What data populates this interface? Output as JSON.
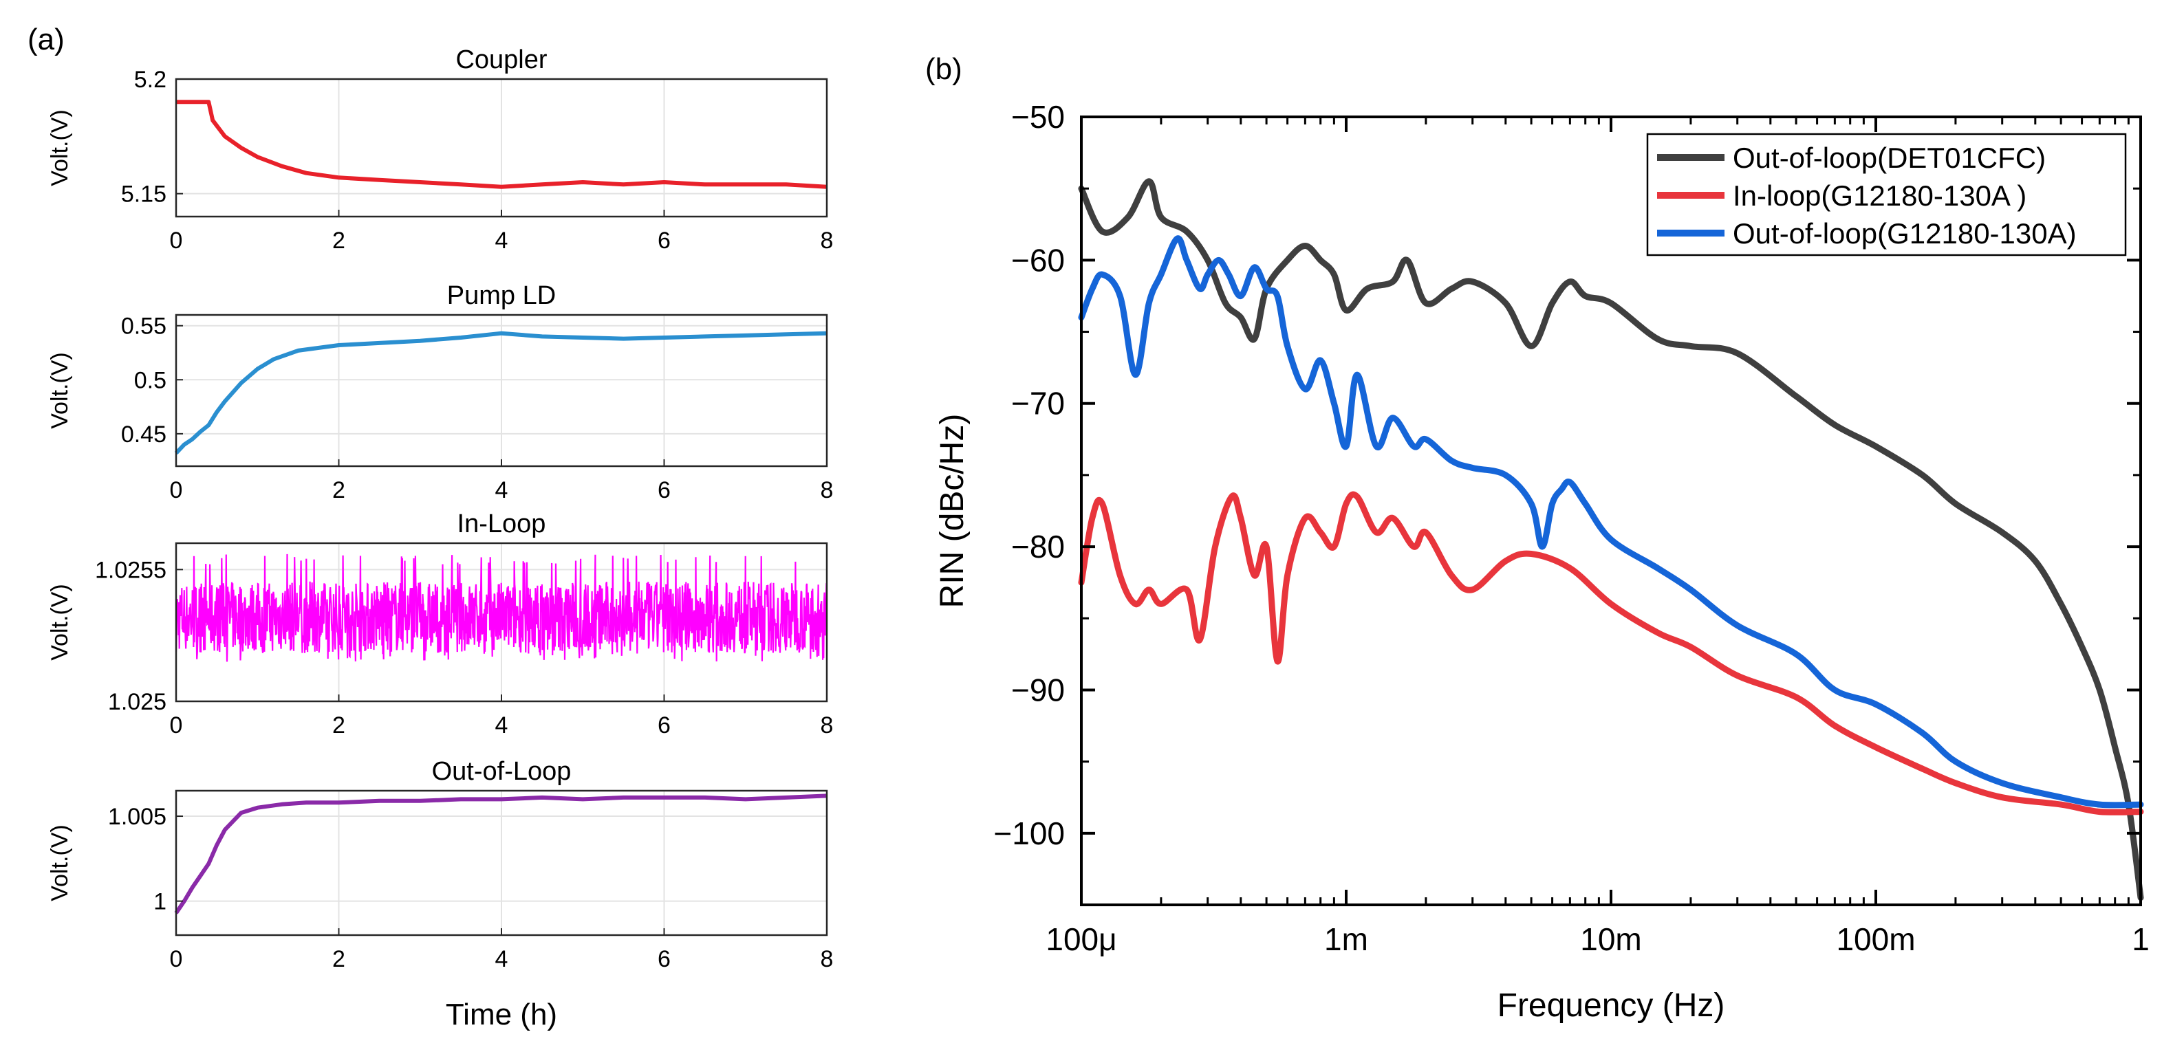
{
  "panel_a_label": "(a)",
  "panel_b_label": "(b)",
  "colors": {
    "coupler": "#e8212a",
    "pump": "#2a8fd0",
    "inloop": "#ff00ff",
    "outloop": "#8a2aa8",
    "det01": "#3f3f3f",
    "inloop_g": "#e8353c",
    "outloop_g": "#1565d8",
    "axis": "#000000",
    "grid": "#e3e3e3"
  },
  "chart_data": [
    {
      "type": "line",
      "title": "Coupler",
      "xlabel": "",
      "ylabel": "Volt.(V)",
      "xlim": [
        0,
        8
      ],
      "ylim": [
        5.14,
        5.2
      ],
      "x_ticks": [
        "0",
        "2",
        "4",
        "6",
        "8"
      ],
      "y_ticks": [
        {
          "value": 5.15,
          "label": "5.15"
        },
        {
          "value": 5.2,
          "label": "5.2"
        }
      ],
      "x": [
        0,
        0.2,
        0.4,
        0.45,
        0.6,
        0.8,
        1.0,
        1.3,
        1.6,
        2.0,
        2.5,
        3.0,
        3.5,
        4.0,
        4.5,
        5.0,
        5.5,
        6.0,
        6.5,
        7.0,
        7.5,
        8.0
      ],
      "values": [
        5.19,
        5.19,
        5.19,
        5.182,
        5.175,
        5.17,
        5.166,
        5.162,
        5.159,
        5.157,
        5.156,
        5.155,
        5.154,
        5.153,
        5.154,
        5.155,
        5.154,
        5.155,
        5.154,
        5.154,
        5.154,
        5.153
      ]
    },
    {
      "type": "line",
      "title": "Pump LD",
      "xlabel": "",
      "ylabel": "Volt.(V)",
      "xlim": [
        0,
        8
      ],
      "ylim": [
        0.42,
        0.56
      ],
      "x_ticks": [
        "0",
        "2",
        "4",
        "6",
        "8"
      ],
      "y_ticks": [
        {
          "value": 0.45,
          "label": "0.45"
        },
        {
          "value": 0.5,
          "label": "0.5"
        },
        {
          "value": 0.55,
          "label": "0.55"
        }
      ],
      "x": [
        0,
        0.1,
        0.2,
        0.3,
        0.4,
        0.5,
        0.6,
        0.8,
        1.0,
        1.2,
        1.5,
        2.0,
        2.5,
        3.0,
        3.5,
        4.0,
        4.5,
        5.0,
        5.5,
        6.0,
        6.5,
        7.0,
        7.5,
        8.0
      ],
      "values": [
        0.432,
        0.44,
        0.445,
        0.452,
        0.458,
        0.47,
        0.48,
        0.497,
        0.51,
        0.519,
        0.527,
        0.532,
        0.534,
        0.536,
        0.539,
        0.543,
        0.54,
        0.539,
        0.538,
        0.539,
        0.54,
        0.541,
        0.542,
        0.543
      ]
    },
    {
      "type": "line",
      "title": "In-Loop",
      "xlabel": "",
      "ylabel": "Volt.(V)",
      "xlim": [
        0,
        8
      ],
      "ylim": [
        1.025,
        1.0256
      ],
      "x_ticks": [
        "0",
        "2",
        "4",
        "6",
        "8"
      ],
      "y_ticks": [
        {
          "value": 1.025,
          "label": "1.025"
        },
        {
          "value": 1.0255,
          "label": "1.0255"
        }
      ],
      "x": [
        0,
        8
      ],
      "values": [
        1.02532,
        1.02532
      ],
      "noise_band": [
        1.02518,
        1.02554
      ]
    },
    {
      "type": "line",
      "title": "Out-of-Loop",
      "xlabel": "Time (h)",
      "ylabel": "Volt.(V)",
      "xlim": [
        0,
        8
      ],
      "ylim": [
        0.998,
        1.0065
      ],
      "x_ticks": [
        "0",
        "2",
        "4",
        "6",
        "8"
      ],
      "y_ticks": [
        {
          "value": 1.0,
          "label": "1"
        },
        {
          "value": 1.005,
          "label": "1.005"
        }
      ],
      "x": [
        0,
        0.1,
        0.2,
        0.3,
        0.4,
        0.5,
        0.6,
        0.8,
        1.0,
        1.3,
        1.6,
        2.0,
        2.5,
        3.0,
        3.5,
        4.0,
        4.5,
        5.0,
        5.5,
        6.0,
        6.5,
        7.0,
        7.5,
        8.0
      ],
      "values": [
        0.9993,
        1.0,
        1.0008,
        1.0015,
        1.0022,
        1.0033,
        1.0042,
        1.0052,
        1.0055,
        1.0057,
        1.0058,
        1.0058,
        1.0059,
        1.0059,
        1.006,
        1.006,
        1.0061,
        1.006,
        1.0061,
        1.0061,
        1.0061,
        1.006,
        1.0061,
        1.0062
      ]
    },
    {
      "type": "line",
      "title": "",
      "xlabel": "Frequency (Hz)",
      "ylabel": "RIN (dBc/Hz)",
      "x_scale": "log",
      "xlim": [
        0.0001,
        1
      ],
      "ylim": [
        -105,
        -50
      ],
      "x_ticks": [
        {
          "value": 0.0001,
          "label": "100μ"
        },
        {
          "value": 0.001,
          "label": "1m"
        },
        {
          "value": 0.01,
          "label": "10m"
        },
        {
          "value": 0.1,
          "label": "100m"
        },
        {
          "value": 1,
          "label": "1"
        }
      ],
      "y_ticks": [
        {
          "value": -50,
          "label": "−50"
        },
        {
          "value": -60,
          "label": "−60"
        },
        {
          "value": -70,
          "label": "−70"
        },
        {
          "value": -80,
          "label": "−80"
        },
        {
          "value": -90,
          "label": "−90"
        },
        {
          "value": -100,
          "label": "−100"
        }
      ],
      "legend_position": "top-right",
      "series": [
        {
          "name": "Out-of-loop(DET01CFC)",
          "color": "#3f3f3f",
          "x": [
            0.0001,
            0.00012,
            0.00015,
            0.00018,
            0.0002,
            0.00025,
            0.0003,
            0.00035,
            0.0004,
            0.00045,
            0.0005,
            0.0006,
            0.0007,
            0.0008,
            0.0009,
            0.001,
            0.0012,
            0.0015,
            0.0017,
            0.002,
            0.0025,
            0.003,
            0.004,
            0.005,
            0.006,
            0.007,
            0.008,
            0.01,
            0.015,
            0.02,
            0.03,
            0.05,
            0.07,
            0.1,
            0.15,
            0.2,
            0.3,
            0.4,
            0.5,
            0.6,
            0.7,
            0.8,
            0.9,
            1.0
          ],
          "values": [
            -55,
            -58,
            -57,
            -54.5,
            -57,
            -58,
            -60,
            -63,
            -64,
            -65.5,
            -62,
            -60,
            -59,
            -60,
            -61,
            -63.5,
            -62,
            -61.5,
            -60,
            -63,
            -62,
            -61.5,
            -63,
            -66,
            -63,
            -61.5,
            -62.5,
            -63,
            -65.5,
            -66,
            -66.5,
            -69.5,
            -71.5,
            -73,
            -75,
            -77,
            -79,
            -81,
            -84,
            -87,
            -90,
            -94,
            -98,
            -104.5
          ]
        },
        {
          "name": "In-loop(G12180-130A )",
          "color": "#e8353c",
          "x": [
            0.0001,
            0.00011,
            0.00012,
            0.00014,
            0.00016,
            0.00018,
            0.0002,
            0.00025,
            0.00028,
            0.00032,
            0.00037,
            0.0004,
            0.00045,
            0.0005,
            0.00055,
            0.0006,
            0.0007,
            0.0008,
            0.0009,
            0.001,
            0.0011,
            0.0013,
            0.0015,
            0.0018,
            0.002,
            0.0025,
            0.003,
            0.004,
            0.005,
            0.007,
            0.01,
            0.015,
            0.02,
            0.03,
            0.05,
            0.07,
            0.1,
            0.15,
            0.2,
            0.3,
            0.5,
            0.7,
            1.0
          ],
          "values": [
            -82.5,
            -78,
            -77,
            -82,
            -84,
            -83,
            -84,
            -83,
            -86.5,
            -80,
            -76.5,
            -78,
            -82,
            -80,
            -88,
            -82,
            -78,
            -79,
            -80,
            -77,
            -76.5,
            -79,
            -78,
            -80,
            -79,
            -82,
            -83,
            -81,
            -80.5,
            -81.5,
            -84,
            -86,
            -87,
            -89,
            -90.5,
            -92.5,
            -94,
            -95.5,
            -96.5,
            -97.5,
            -98,
            -98.5,
            -98.5
          ]
        },
        {
          "name": "Out-of-loop(G12180-130A)",
          "color": "#1565d8",
          "x": [
            0.0001,
            0.00011,
            0.00012,
            0.00014,
            0.00016,
            0.00018,
            0.0002,
            0.00023,
            0.00025,
            0.00028,
            0.0003,
            0.00033,
            0.00036,
            0.0004,
            0.00045,
            0.0005,
            0.00055,
            0.0006,
            0.0007,
            0.0008,
            0.0009,
            0.001,
            0.0011,
            0.0013,
            0.0015,
            0.0018,
            0.002,
            0.0025,
            0.003,
            0.004,
            0.005,
            0.0055,
            0.006,
            0.0065,
            0.007,
            0.008,
            0.01,
            0.015,
            0.02,
            0.03,
            0.05,
            0.07,
            0.1,
            0.15,
            0.2,
            0.3,
            0.5,
            0.7,
            1.0
          ],
          "values": [
            -64,
            -62,
            -61,
            -62.5,
            -68,
            -63,
            -61,
            -58.5,
            -60,
            -62,
            -61,
            -60,
            -61,
            -62.5,
            -60.5,
            -62,
            -62.5,
            -66,
            -69,
            -67,
            -70,
            -73,
            -68,
            -73,
            -71,
            -73,
            -72.5,
            -74,
            -74.5,
            -75,
            -77,
            -80,
            -77,
            -76,
            -75.5,
            -77,
            -79.5,
            -81.5,
            -83,
            -85.5,
            -87.5,
            -90,
            -91,
            -93,
            -95,
            -96.5,
            -97.5,
            -98,
            -98
          ]
        }
      ]
    }
  ]
}
